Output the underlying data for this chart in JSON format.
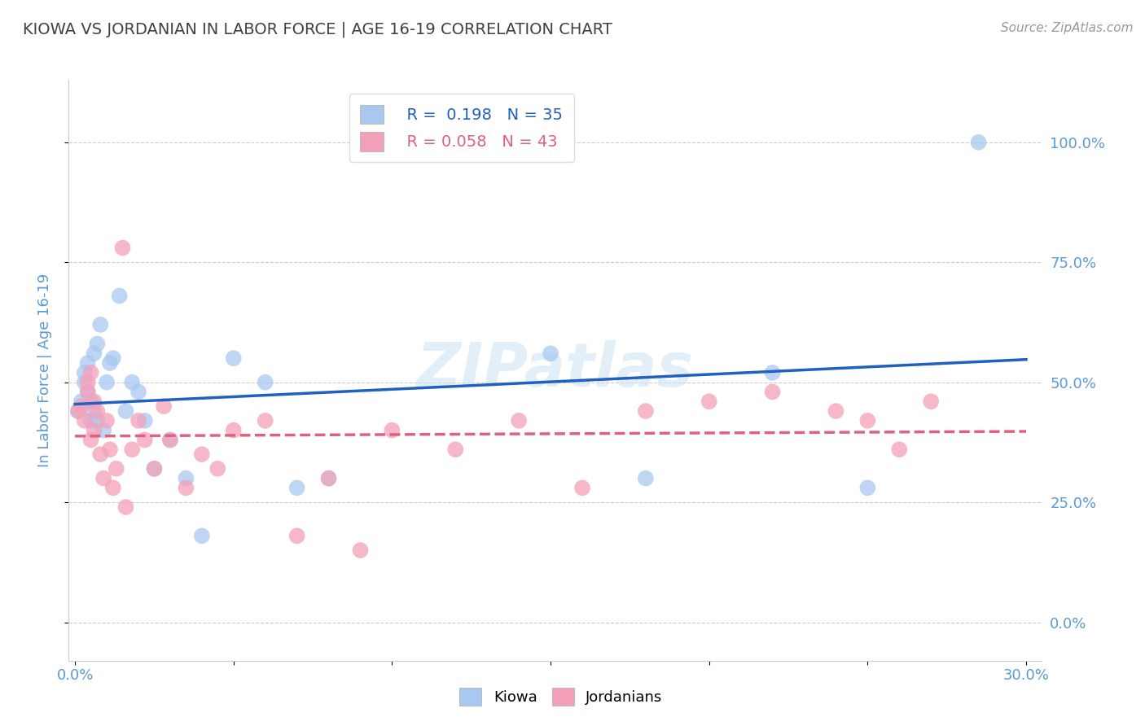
{
  "title": "KIOWA VS JORDANIAN IN LABOR FORCE | AGE 16-19 CORRELATION CHART",
  "source_text": "Source: ZipAtlas.com",
  "ylabel": "In Labor Force | Age 16-19",
  "xlim": [
    -0.002,
    0.305
  ],
  "ylim": [
    -0.08,
    1.13
  ],
  "xticks": [
    0.0,
    0.05,
    0.1,
    0.15,
    0.2,
    0.25,
    0.3
  ],
  "xticklabels": [
    "0.0%",
    "",
    "",
    "",
    "",
    "",
    "30.0%"
  ],
  "yticks": [
    0.0,
    0.25,
    0.5,
    0.75,
    1.0
  ],
  "yticklabels": [
    "0.0%",
    "25.0%",
    "50.0%",
    "75.0%",
    "100.0%"
  ],
  "kiowa_color": "#a8c8f0",
  "jordanian_color": "#f4a0b8",
  "kiowa_line_color": "#2060c0",
  "jordanian_line_color": "#e06080",
  "background_color": "#ffffff",
  "grid_color": "#cccccc",
  "title_color": "#404040",
  "axis_label_color": "#5b9bd5",
  "tick_label_color": "#5b9bd5",
  "watermark": "ZIPatlas",
  "legend_R_kiowa": "R =  0.198",
  "legend_N_kiowa": "N = 35",
  "legend_R_jordanian": "R = 0.058",
  "legend_N_jordanian": "N = 43",
  "kiowa_x": [
    0.001,
    0.002,
    0.003,
    0.003,
    0.004,
    0.004,
    0.005,
    0.005,
    0.006,
    0.006,
    0.007,
    0.007,
    0.008,
    0.009,
    0.01,
    0.011,
    0.012,
    0.014,
    0.016,
    0.018,
    0.02,
    0.022,
    0.025,
    0.03,
    0.035,
    0.04,
    0.05,
    0.06,
    0.07,
    0.08,
    0.15,
    0.18,
    0.22,
    0.25,
    0.285
  ],
  "kiowa_y": [
    0.44,
    0.46,
    0.5,
    0.52,
    0.48,
    0.54,
    0.42,
    0.46,
    0.44,
    0.56,
    0.58,
    0.42,
    0.62,
    0.4,
    0.5,
    0.54,
    0.55,
    0.68,
    0.44,
    0.5,
    0.48,
    0.42,
    0.32,
    0.38,
    0.3,
    0.18,
    0.55,
    0.5,
    0.28,
    0.3,
    0.56,
    0.3,
    0.52,
    0.28,
    1.0
  ],
  "jordanian_x": [
    0.001,
    0.002,
    0.003,
    0.004,
    0.004,
    0.005,
    0.005,
    0.006,
    0.006,
    0.007,
    0.008,
    0.009,
    0.01,
    0.011,
    0.012,
    0.013,
    0.015,
    0.016,
    0.018,
    0.02,
    0.022,
    0.025,
    0.028,
    0.03,
    0.035,
    0.04,
    0.045,
    0.05,
    0.06,
    0.07,
    0.08,
    0.09,
    0.1,
    0.12,
    0.14,
    0.16,
    0.18,
    0.2,
    0.22,
    0.24,
    0.25,
    0.26,
    0.27
  ],
  "jordanian_y": [
    0.44,
    0.45,
    0.42,
    0.48,
    0.5,
    0.52,
    0.38,
    0.46,
    0.4,
    0.44,
    0.35,
    0.3,
    0.42,
    0.36,
    0.28,
    0.32,
    0.78,
    0.24,
    0.36,
    0.42,
    0.38,
    0.32,
    0.45,
    0.38,
    0.28,
    0.35,
    0.32,
    0.4,
    0.42,
    0.18,
    0.3,
    0.15,
    0.4,
    0.36,
    0.42,
    0.28,
    0.44,
    0.46,
    0.48,
    0.44,
    0.42,
    0.36,
    0.46
  ]
}
